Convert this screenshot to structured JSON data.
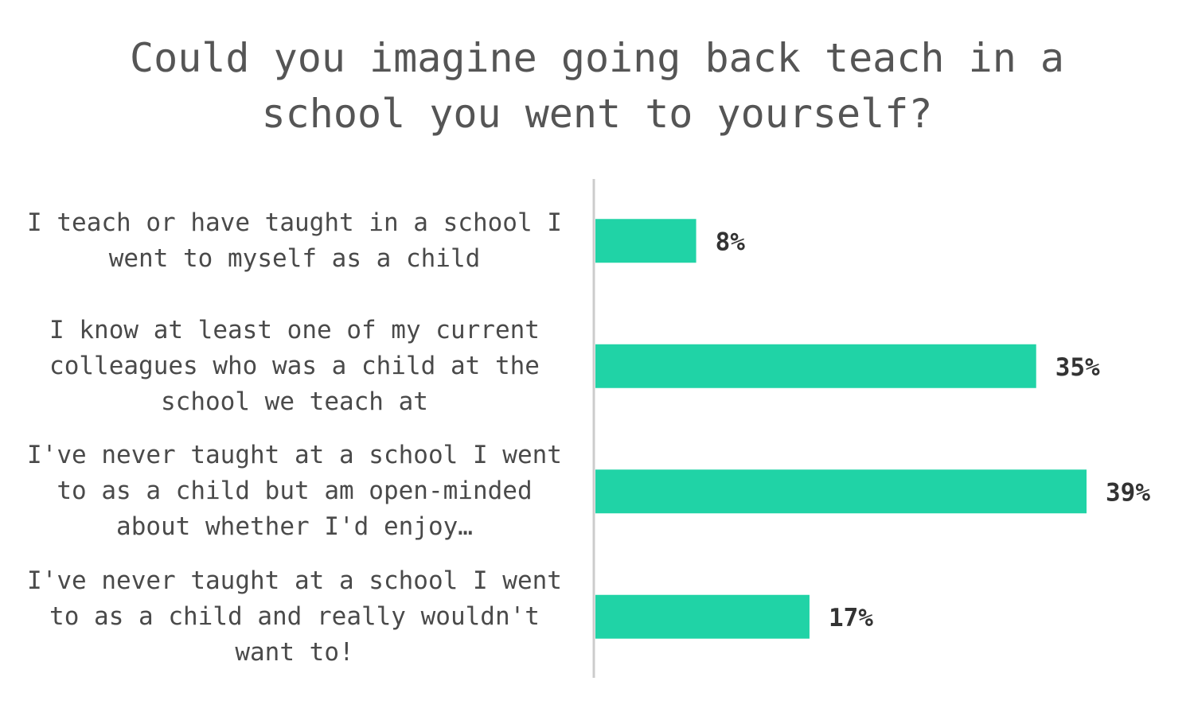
{
  "chart_data": {
    "type": "bar",
    "orientation": "horizontal",
    "title": "Could you imagine going back teach in a school you went to yourself?",
    "categories": [
      "I teach or have taught in a school I went to myself as a child",
      "I know at least one of my current colleagues who was a child at the school we teach at",
      "I've never taught at a school I went to as a child but am open-minded about whether I'd enjoy…",
      "I've never taught at a school I went to as a child and really wouldn't want to!"
    ],
    "values": [
      8,
      35,
      39,
      17
    ],
    "value_labels": [
      "8%",
      "35%",
      "39%",
      "17%"
    ],
    "color": "#20d3a6"
  }
}
